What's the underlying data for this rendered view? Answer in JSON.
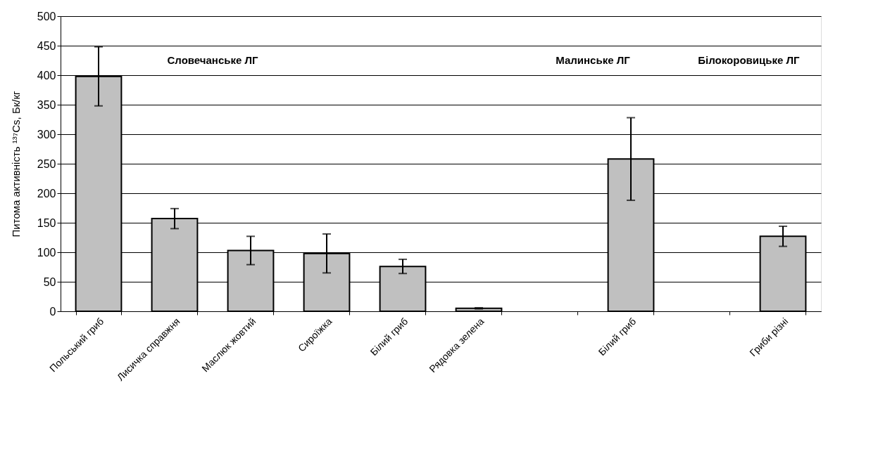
{
  "chart_data": {
    "type": "bar",
    "ylabel": "Питома активність ¹³⁷Cs, Бк/кг",
    "categories": [
      "Польський гриб",
      "Лисичка справжня",
      "Маслюк жовтий",
      "Сироїжка",
      "Білий гриб",
      "Рядовка зелена",
      null,
      "Білий гриб",
      null,
      "Гриби різні"
    ],
    "values": [
      398,
      157,
      103,
      98,
      76,
      5,
      null,
      258,
      null,
      127
    ],
    "errors": [
      50,
      17,
      24,
      33,
      12,
      1,
      null,
      70,
      null,
      17
    ],
    "color": "#c0c0c0",
    "ylim": [
      0,
      500
    ],
    "yticks": [
      0,
      50,
      100,
      150,
      200,
      250,
      300,
      350,
      400,
      450,
      500
    ],
    "grid": "y",
    "annotations": [
      "Словечанське ЛГ",
      "Малинське ЛГ",
      "Білокоровицьке ЛГ"
    ]
  }
}
